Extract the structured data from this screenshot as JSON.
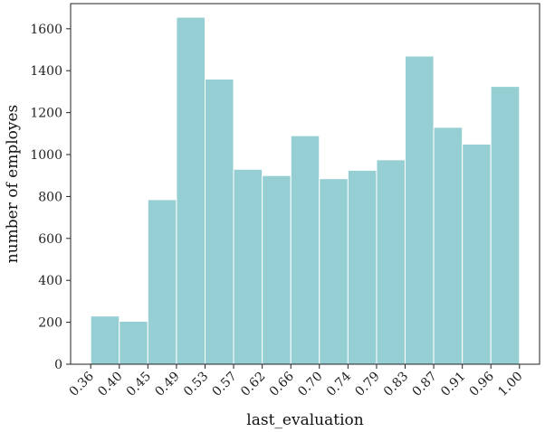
{
  "chart_data": {
    "type": "bar",
    "subtype": "histogram",
    "xlabel": "last_evaluation",
    "ylabel": "number of employes",
    "x_tick_labels": [
      "0.36",
      "0.40",
      "0.45",
      "0.49",
      "0.53",
      "0.57",
      "0.62",
      "0.66",
      "0.70",
      "0.74",
      "0.79",
      "0.83",
      "0.87",
      "0.91",
      "0.96",
      "1.00"
    ],
    "bin_edges": [
      0.36,
      0.4027,
      0.4453,
      0.488,
      0.5307,
      0.5733,
      0.616,
      0.6587,
      0.7013,
      0.744,
      0.7867,
      0.8293,
      0.872,
      0.9147,
      0.9573,
      1.0
    ],
    "values": [
      230,
      205,
      785,
      1655,
      1360,
      930,
      900,
      1090,
      885,
      925,
      975,
      1470,
      1130,
      1050,
      1325
    ],
    "ylim": [
      0,
      1720
    ],
    "y_ticks": [
      0,
      200,
      400,
      600,
      800,
      1000,
      1200,
      1400,
      1600
    ],
    "xlim": [
      0.33,
      1.03
    ],
    "x_tick_rotation_deg": 45,
    "grid": false,
    "legend": "none",
    "colors": {
      "bar_fill": "#95cfd3",
      "bar_edge": "#ffffff",
      "axes": "#222222"
    }
  }
}
